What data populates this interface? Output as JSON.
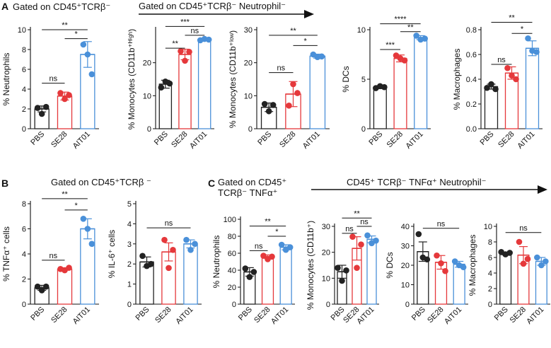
{
  "colors": {
    "PBS": "#222222",
    "SE28": "#e5383b",
    "AIT01": "#4a90d9"
  },
  "panel_labels": {
    "A": "A",
    "B": "B",
    "C": "C"
  },
  "headers": {
    "a_gate": "Gated on CD45⁺TCRβ⁻",
    "a_arrow": "Gated on CD45⁺TCRβ⁻ Neutrophil⁻",
    "b_gate": "Gated on CD45⁺TCRβ ⁻",
    "c_gate_1": "Gated on CD45⁺",
    "c_gate_2": "TCRβ⁻ TNFα⁺",
    "c_arrow": "CD45⁺ TCRβ⁻ TNFα⁺ Neutrophil⁻"
  },
  "chart_data": [
    {
      "id": "A1",
      "type": "bar",
      "ylabel": "% Neutrophils",
      "categories": [
        "PBS",
        "SE28",
        "AIT01"
      ],
      "ylim": [
        0,
        10
      ],
      "yticks": [
        "0",
        "2",
        "4",
        "6",
        "8",
        "10"
      ],
      "tickvals": [
        0,
        2,
        4,
        6,
        8,
        10
      ],
      "values": [
        2.0,
        3.3,
        7.5
      ],
      "errors": [
        0.3,
        0.4,
        1.3
      ],
      "points": [
        [
          2.1,
          1.5,
          2.2
        ],
        [
          3.6,
          3.0,
          3.4
        ],
        [
          8.5,
          7.5,
          5.5
        ]
      ],
      "sig": [
        {
          "a": 1,
          "b": 2,
          "label": "*",
          "y": 9.1
        },
        {
          "a": 0,
          "b": 2,
          "label": "**",
          "y": 10.0
        },
        {
          "a": 0,
          "b": 1,
          "label": "ns",
          "y": 4.6
        }
      ]
    },
    {
      "id": "A2",
      "type": "bar",
      "ylabel": "% Monocytes (CD11b⁺ᴴⁱᵍʰ)",
      "categories": [
        "PBS",
        "SE28",
        "AIT01"
      ],
      "ylim": [
        0,
        30
      ],
      "yticks": [
        "0",
        "10",
        "20"
      ],
      "tickvals": [
        0,
        10,
        20
      ],
      "values": [
        13.5,
        22.5,
        27.0
      ],
      "errors": [
        1.2,
        1.6,
        0.3
      ],
      "points": [
        [
          12.5,
          14.3,
          13.7
        ],
        [
          23.5,
          20.6,
          23.3
        ],
        [
          26.8,
          27.2,
          27.0
        ]
      ],
      "sig": [
        {
          "a": 1,
          "b": 2,
          "label": "ns",
          "y": 28.3
        },
        {
          "a": 0,
          "b": 1,
          "label": "**",
          "y": 24.4
        },
        {
          "a": 0,
          "b": 2,
          "label": "***",
          "y": 31.0
        }
      ]
    },
    {
      "id": "A3",
      "type": "bar",
      "ylabel": "% Monocytes (CD11b⁺ˡᵒʷ)",
      "categories": [
        "PBS",
        "SE28",
        "AIT01"
      ],
      "ylim": [
        0,
        30
      ],
      "yticks": [
        "0",
        "10",
        "20",
        "30"
      ],
      "tickvals": [
        0,
        10,
        20,
        30
      ],
      "values": [
        6.5,
        10.5,
        22.0
      ],
      "errors": [
        1.3,
        3.8,
        0.6
      ],
      "points": [
        [
          7.5,
          5.3,
          7.2
        ],
        [
          7.0,
          13.5,
          10.8
        ],
        [
          22.5,
          21.7,
          21.9
        ]
      ],
      "sig": [
        {
          "a": 1,
          "b": 2,
          "label": "*",
          "y": 25.2
        },
        {
          "a": 0,
          "b": 2,
          "label": "**",
          "y": 28.3
        },
        {
          "a": 0,
          "b": 1,
          "label": "ns",
          "y": 17.0
        }
      ]
    },
    {
      "id": "A4",
      "type": "bar",
      "ylabel": "% DCs",
      "categories": [
        "PBS",
        "SE28",
        "AIT01"
      ],
      "ylim": [
        0,
        10
      ],
      "yticks": [
        "0",
        "5",
        "10"
      ],
      "tickvals": [
        0,
        5,
        10
      ],
      "values": [
        4.2,
        7.1,
        9.2
      ],
      "errors": [
        0.15,
        0.35,
        0.2
      ],
      "points": [
        [
          4.1,
          4.3,
          4.2
        ],
        [
          7.4,
          7.1,
          6.9
        ],
        [
          9.4,
          9.0,
          9.1
        ]
      ],
      "sig": [
        {
          "a": 0,
          "b": 1,
          "label": "***",
          "y": 8.0
        },
        {
          "a": 1,
          "b": 2,
          "label": "**",
          "y": 9.8
        },
        {
          "a": 0,
          "b": 2,
          "label": "****",
          "y": 10.6
        }
      ]
    },
    {
      "id": "A5",
      "type": "bar",
      "ylabel": "% Macrophages",
      "categories": [
        "PBS",
        "SE28",
        "AIT01"
      ],
      "ylim": [
        0,
        0.8
      ],
      "yticks": [
        "0.0",
        "0.2",
        "0.4",
        "0.6",
        "0.8"
      ],
      "tickvals": [
        0,
        0.2,
        0.4,
        0.6,
        0.8
      ],
      "values": [
        0.34,
        0.45,
        0.65
      ],
      "errors": [
        0.02,
        0.05,
        0.06
      ],
      "points": [
        [
          0.33,
          0.36,
          0.32
        ],
        [
          0.49,
          0.43,
          0.4
        ],
        [
          0.73,
          0.63,
          0.62
        ]
      ],
      "sig": [
        {
          "a": 0,
          "b": 1,
          "label": "ns",
          "y": 0.52
        },
        {
          "a": 1,
          "b": 2,
          "label": "*",
          "y": 0.77
        },
        {
          "a": 0,
          "b": 2,
          "label": "**",
          "y": 0.86
        }
      ]
    },
    {
      "id": "B1",
      "type": "bar",
      "ylabel": "% TNFα⁺ cells",
      "categories": [
        "PBS",
        "SE28",
        "AIT01"
      ],
      "ylim": [
        0,
        8
      ],
      "yticks": [
        "0",
        "2",
        "4",
        "6",
        "8"
      ],
      "tickvals": [
        0,
        2,
        4,
        6,
        8
      ],
      "values": [
        1.3,
        2.8,
        6.0
      ],
      "errors": [
        0.2,
        0.1,
        0.8
      ],
      "points": [
        [
          1.4,
          1.1,
          1.4
        ],
        [
          2.8,
          2.7,
          2.9
        ],
        [
          6.8,
          6.0,
          4.8
        ]
      ],
      "sig": [
        {
          "a": 0,
          "b": 1,
          "label": "ns",
          "y": 3.5
        },
        {
          "a": 1,
          "b": 2,
          "label": "*",
          "y": 7.5
        },
        {
          "a": 0,
          "b": 2,
          "label": "**",
          "y": 8.4
        }
      ]
    },
    {
      "id": "B2",
      "type": "bar",
      "ylabel": "% IL-6⁺ cells",
      "categories": [
        "PBS",
        "SE28",
        "AIT01"
      ],
      "ylim": [
        0,
        5
      ],
      "yticks": [
        "0",
        "1",
        "2",
        "3",
        "4",
        "5"
      ],
      "tickvals": [
        0,
        1,
        2,
        3,
        4,
        5
      ],
      "values": [
        2.1,
        2.6,
        3.0
      ],
      "errors": [
        0.25,
        0.45,
        0.2
      ],
      "points": [
        [
          2.4,
          1.9,
          2.0
        ],
        [
          3.2,
          1.8,
          2.7
        ],
        [
          3.2,
          2.7,
          3.0
        ]
      ],
      "sig": [
        {
          "a": 0,
          "b": 2,
          "label": "ns",
          "y": 3.8
        }
      ]
    },
    {
      "id": "C1",
      "type": "bar",
      "ylabel": "% Neutrophils",
      "categories": [
        "PBS",
        "SE28",
        "AIT01"
      ],
      "ylim": [
        0,
        100
      ],
      "yticks": [
        "0",
        "20",
        "40",
        "60",
        "80",
        "100"
      ],
      "tickvals": [
        0,
        20,
        40,
        60,
        80,
        100
      ],
      "values": [
        38,
        56,
        67
      ],
      "errors": [
        5,
        2,
        3
      ],
      "points": [
        [
          42,
          32,
          38
        ],
        [
          57,
          53,
          56
        ],
        [
          70,
          64,
          67
        ]
      ],
      "sig": [
        {
          "a": 0,
          "b": 1,
          "label": "ns",
          "y": 63
        },
        {
          "a": 1,
          "b": 2,
          "label": "*",
          "y": 80
        },
        {
          "a": 0,
          "b": 2,
          "label": "**",
          "y": 92
        }
      ]
    },
    {
      "id": "C2",
      "type": "bar",
      "ylabel": "% Monocytes (CD11b⁺)",
      "categories": [
        "PBS",
        "SE28",
        "AIT01"
      ],
      "ylim": [
        0,
        30
      ],
      "yticks": [
        "0",
        "10",
        "20",
        "30"
      ],
      "tickvals": [
        0,
        10,
        20,
        30
      ],
      "values": [
        12.5,
        21.5,
        25.0
      ],
      "errors": [
        2.5,
        4.5,
        1.3
      ],
      "points": [
        [
          14.0,
          9.0,
          13.0
        ],
        [
          26.0,
          14.0,
          23.0
        ],
        [
          26.5,
          23.5,
          24.5
        ]
      ],
      "sig": [
        {
          "a": 0,
          "b": 1,
          "label": "ns",
          "y": 27.3
        },
        {
          "a": 1,
          "b": 2,
          "label": "ns",
          "y": 30.0
        },
        {
          "a": 0,
          "b": 2,
          "label": "**",
          "y": 33.2
        }
      ]
    },
    {
      "id": "C3",
      "type": "bar",
      "ylabel": "% DCs",
      "categories": [
        "PBS",
        "SE28",
        "AIT01"
      ],
      "ylim": [
        0,
        40
      ],
      "yticks": [
        "0",
        "10",
        "20",
        "30",
        "40"
      ],
      "tickvals": [
        0,
        10,
        20,
        30,
        40
      ],
      "values": [
        27,
        21.5,
        20.5
      ],
      "errors": [
        5,
        3.5,
        1.5
      ],
      "points": [
        [
          36,
          24,
          23
        ],
        [
          25,
          21,
          17
        ],
        [
          22,
          20,
          19
        ]
      ],
      "sig": [
        {
          "a": 0,
          "b": 2,
          "label": "ns",
          "y": 39
        }
      ]
    },
    {
      "id": "C4",
      "type": "bar",
      "ylabel": "% Macrophages",
      "categories": [
        "PBS",
        "SE28",
        "AIT01"
      ],
      "ylim": [
        0,
        10
      ],
      "yticks": [
        "0",
        "2",
        "4",
        "6",
        "8",
        "10"
      ],
      "tickvals": [
        0,
        2,
        4,
        6,
        8,
        10
      ],
      "values": [
        6.5,
        6.3,
        5.5
      ],
      "errors": [
        0.15,
        1.1,
        0.5
      ],
      "points": [
        [
          6.7,
          6.4,
          6.6
        ],
        [
          8.0,
          5.2,
          5.8
        ],
        [
          6.0,
          5.0,
          5.5
        ]
      ],
      "sig": [
        {
          "a": 0,
          "b": 2,
          "label": "ns",
          "y": 9.2
        }
      ]
    }
  ]
}
